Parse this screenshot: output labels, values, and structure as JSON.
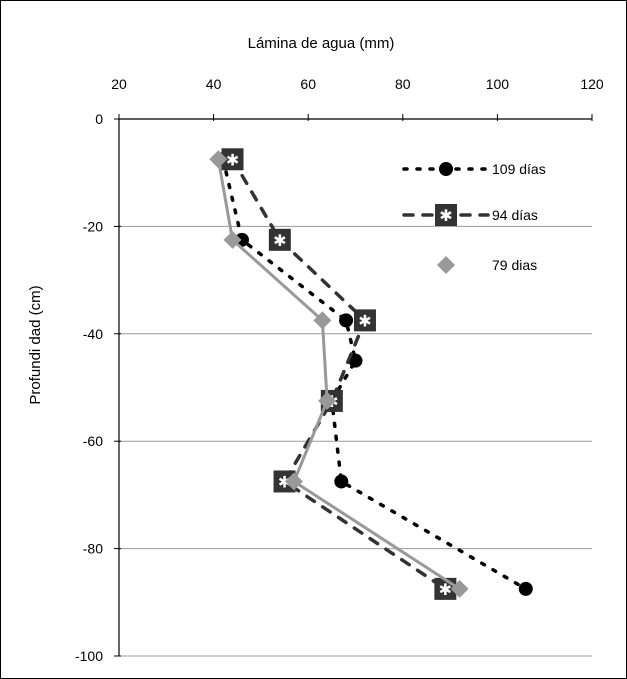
{
  "chart_data": {
    "type": "line",
    "title": "",
    "xlabel": "Lámina de agua (mm)",
    "ylabel": "Profundi dad  (cm)",
    "x_axis_position": "top",
    "xlim": [
      20,
      120
    ],
    "ylim": [
      -100,
      0
    ],
    "x_ticks": [
      20,
      40,
      60,
      80,
      100,
      120
    ],
    "y_ticks": [
      0,
      -20,
      -40,
      -60,
      -80,
      -100
    ],
    "x_tick_labels": [
      "20",
      "40",
      "60",
      "80",
      "100",
      "120"
    ],
    "y_tick_labels": [
      "0",
      "-20",
      "-40",
      "-60",
      "-80",
      "-100"
    ],
    "grid": "horizontal",
    "legend_position": "top-right",
    "series": [
      {
        "name": "109 días",
        "style": "dotted",
        "marker": "circle",
        "color": "#000000",
        "points": [
          {
            "x": 42,
            "y": -7.5
          },
          {
            "x": 46,
            "y": -22.5
          },
          {
            "x": 68,
            "y": -37.5
          },
          {
            "x": 70,
            "y": -45
          },
          {
            "x": 65,
            "y": -52.5
          },
          {
            "x": 67,
            "y": -67.5
          },
          {
            "x": 106,
            "y": -87.5
          }
        ]
      },
      {
        "name": "94 días",
        "style": "dashed",
        "marker": "square-asterisk",
        "color": "#333333",
        "points": [
          {
            "x": 44,
            "y": -7.5
          },
          {
            "x": 54,
            "y": -22.5
          },
          {
            "x": 72,
            "y": -37.5
          },
          {
            "x": 65,
            "y": -52.5
          },
          {
            "x": 55,
            "y": -67.5
          },
          {
            "x": 89,
            "y": -87.5
          }
        ]
      },
      {
        "name": "79 dias",
        "style": "solid",
        "marker": "diamond",
        "color": "#999999",
        "points": [
          {
            "x": 41,
            "y": -7.5
          },
          {
            "x": 44,
            "y": -22.5
          },
          {
            "x": 63,
            "y": -37.5
          },
          {
            "x": 64,
            "y": -52.5
          },
          {
            "x": 57,
            "y": -67.5
          },
          {
            "x": 92,
            "y": -87.5
          }
        ]
      }
    ]
  }
}
